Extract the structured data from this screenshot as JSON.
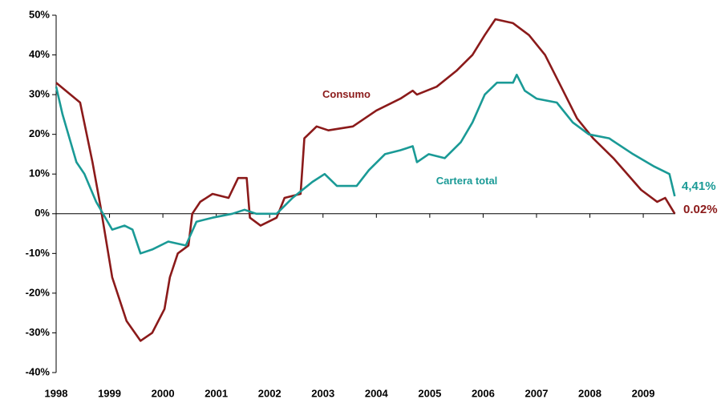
{
  "chart_data": {
    "type": "line",
    "xlim": [
      1998,
      2009.6
    ],
    "xticks": [
      1998,
      1999,
      2000,
      2001,
      2002,
      2003,
      2004,
      2005,
      2006,
      2007,
      2008,
      2009
    ],
    "ylim": [
      -40,
      50
    ],
    "yticks": [
      {
        "value": -40,
        "label": "-40%"
      },
      {
        "value": -30,
        "label": "-30%"
      },
      {
        "value": -20,
        "label": "-20%"
      },
      {
        "value": -10,
        "label": "-10%"
      },
      {
        "value": 0,
        "label": "0%"
      },
      {
        "value": 10,
        "label": "10%"
      },
      {
        "value": 20,
        "label": "20%"
      },
      {
        "value": 30,
        "label": "30%"
      },
      {
        "value": 40,
        "label": "40%"
      },
      {
        "value": 50,
        "label": "50%"
      }
    ],
    "series": [
      {
        "name": "Consumo",
        "color": "#8b1a1a",
        "end_label": "0.02%",
        "x": [
          1998,
          1998.45,
          1998.68,
          1998.83,
          1999.05,
          1999.32,
          1999.58,
          1999.8,
          2000.03,
          2000.13,
          2000.28,
          2000.48,
          2000.55,
          2000.7,
          2000.93,
          2001.23,
          2001.41,
          2001.57,
          2001.63,
          2001.83,
          2002.13,
          2002.28,
          2002.58,
          2002.65,
          2002.88,
          2003.1,
          2003.56,
          2004.0,
          2004.45,
          2004.68,
          2004.76,
          2005.13,
          2005.5,
          2005.8,
          2006.03,
          2006.23,
          2006.56,
          2006.86,
          2007.16,
          2007.46,
          2007.76,
          2008.06,
          2008.44,
          2008.96,
          2009.26,
          2009.41,
          2009.59
        ],
        "values": [
          33,
          28,
          13,
          2,
          -16,
          -27,
          -32,
          -30,
          -24,
          -16,
          -10,
          -8,
          0,
          3,
          5,
          4,
          9,
          9,
          -1,
          -3,
          -1,
          4,
          5,
          19,
          22,
          21,
          22,
          26,
          29,
          31,
          30,
          32,
          36,
          40,
          45,
          49,
          48,
          45,
          40,
          32,
          24,
          19,
          14,
          6,
          3,
          4,
          0.02
        ]
      },
      {
        "name": "Cartera total",
        "color": "#1a9a96",
        "end_label": "4,41%",
        "x": [
          1998,
          1998.12,
          1998.38,
          1998.53,
          1998.75,
          1999.05,
          1999.28,
          1999.43,
          1999.58,
          1999.8,
          2000.1,
          2000.43,
          2000.63,
          2000.93,
          2001.3,
          2001.53,
          2001.75,
          2002.13,
          2002.43,
          2002.8,
          2003.03,
          2003.26,
          2003.63,
          2003.86,
          2004.16,
          2004.45,
          2004.68,
          2004.76,
          2004.98,
          2005.28,
          2005.58,
          2005.8,
          2006.03,
          2006.26,
          2006.56,
          2006.63,
          2006.78,
          2007.0,
          2007.38,
          2007.68,
          2007.98,
          2008.36,
          2008.81,
          2009.19,
          2009.49,
          2009.59
        ],
        "values": [
          32,
          25,
          13,
          10,
          3,
          -4,
          -3,
          -4,
          -10,
          -9,
          -7,
          -8,
          -2,
          -1,
          0,
          1,
          0,
          0,
          4,
          8,
          10,
          7,
          7,
          11,
          15,
          16,
          17,
          13,
          15,
          14,
          18,
          23,
          30,
          33,
          33,
          35,
          31,
          29,
          28,
          23,
          20,
          19,
          15,
          12,
          10,
          4.41
        ]
      }
    ]
  }
}
